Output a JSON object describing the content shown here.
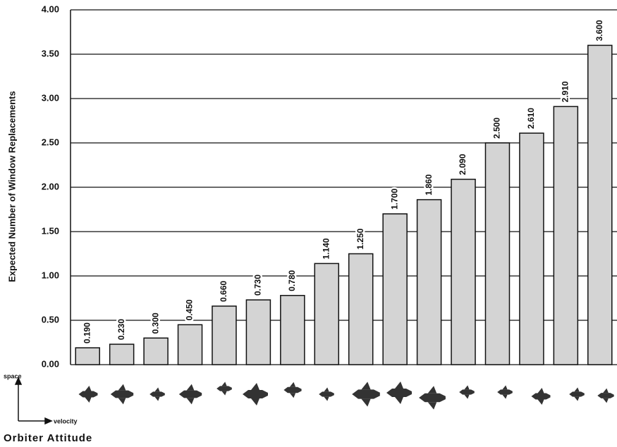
{
  "chart_data": {
    "type": "bar",
    "y_label": "Expected Number of Window Replacements",
    "x_label": "Orbiter Attitude",
    "axis_key": {
      "up": "space",
      "right": "velocity"
    },
    "categories": [
      null,
      null,
      null,
      null,
      null,
      null,
      null,
      null,
      null,
      null,
      null,
      null,
      null,
      null,
      null,
      null
    ],
    "values": [
      0.19,
      0.23,
      0.3,
      0.45,
      0.66,
      0.73,
      0.78,
      1.14,
      1.25,
      1.7,
      1.86,
      2.09,
      2.5,
      2.61,
      2.91,
      3.6
    ],
    "value_labels": [
      "0.190",
      "0.230",
      "0.300",
      "0.450",
      "0.660",
      "0.730",
      "0.780",
      "1.140",
      "1.250",
      "1.700",
      "1.860",
      "2.090",
      "2.500",
      "2.610",
      "2.910",
      "3.600"
    ],
    "color": "#d4d4d4",
    "ylim": [
      0,
      4
    ],
    "yticks": [
      {
        "value": 0,
        "label": "0.00"
      },
      {
        "value": 0.5,
        "label": "0.50"
      },
      {
        "value": 1,
        "label": "1.00"
      },
      {
        "value": 1.5,
        "label": "1.50"
      },
      {
        "value": 2,
        "label": "2.00"
      },
      {
        "value": 2.5,
        "label": "2.50"
      },
      {
        "value": 3,
        "label": "3.00"
      },
      {
        "value": 3.5,
        "label": "3.50"
      },
      {
        "value": 4,
        "label": "4.00"
      }
    ],
    "grid": true
  }
}
